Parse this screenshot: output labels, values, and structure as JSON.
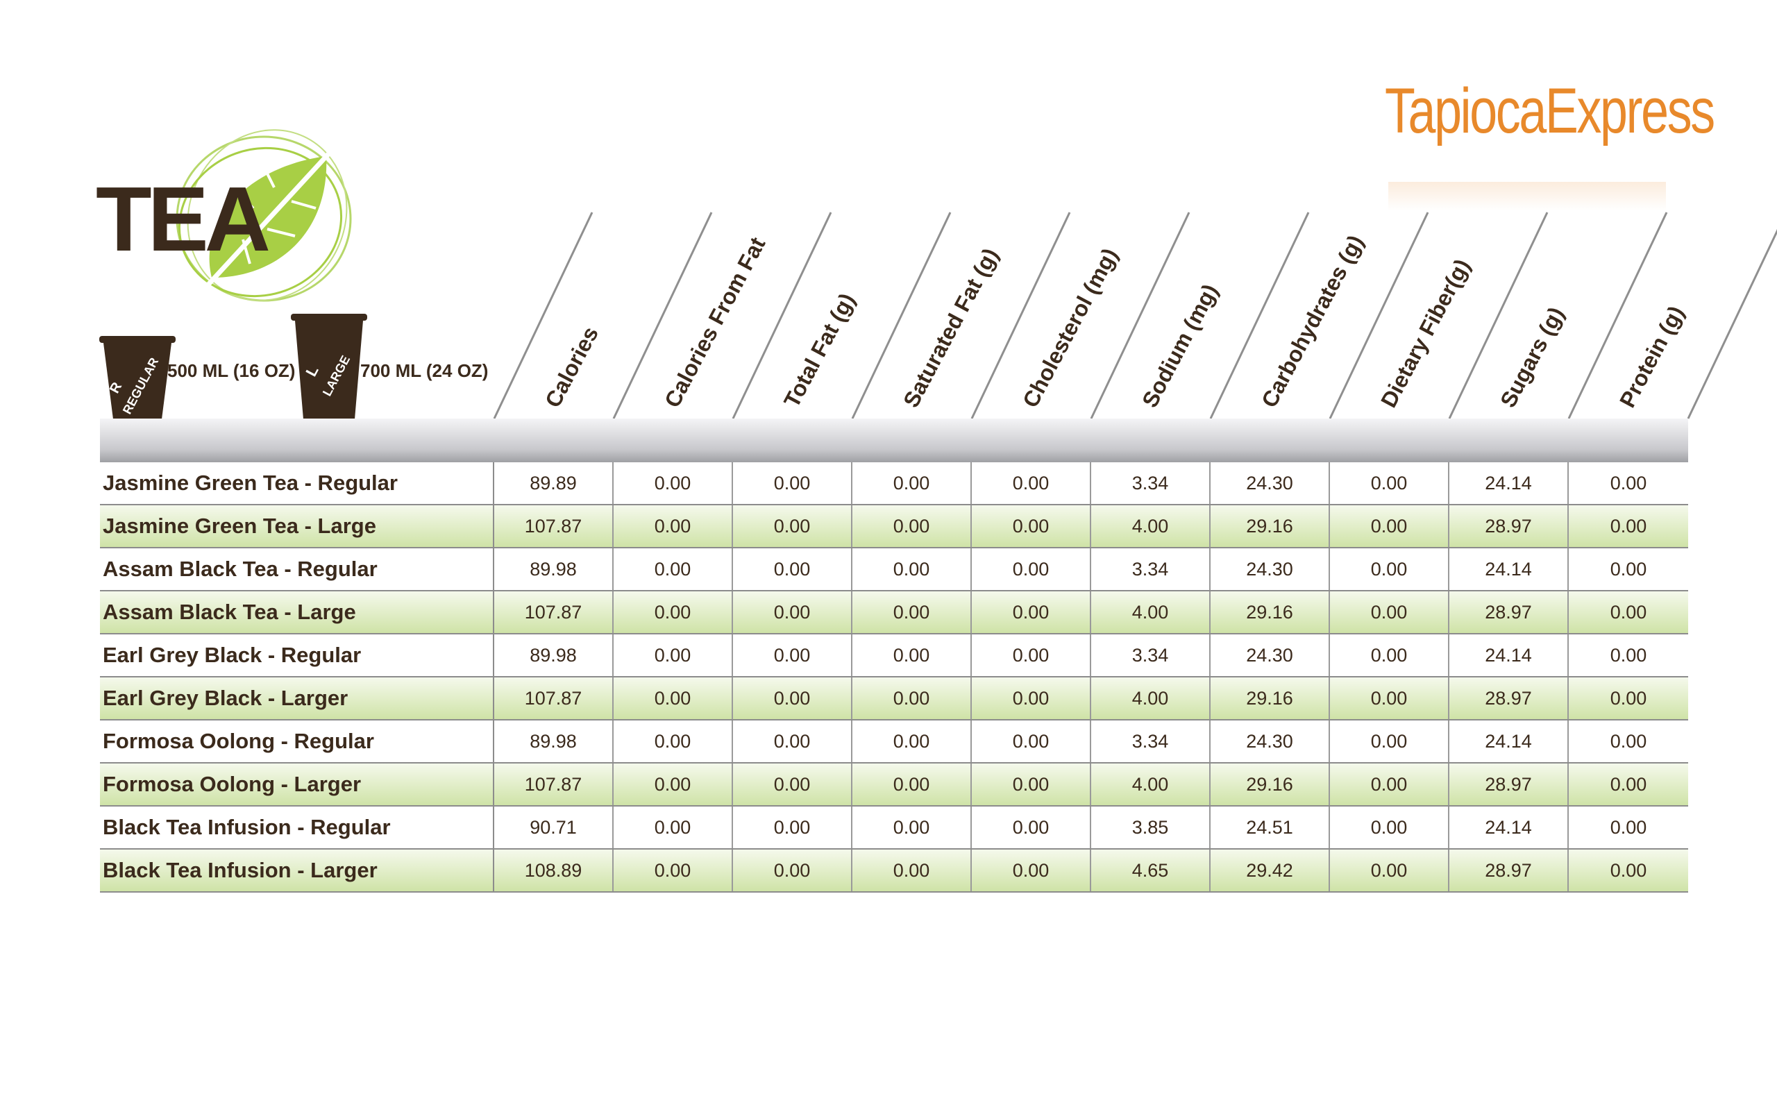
{
  "header": {
    "title": "TEA",
    "brand": "TapiocaExpress"
  },
  "sizes": [
    {
      "letter": "R",
      "name": "REGULAR",
      "volume": "500 ML (16 OZ)"
    },
    {
      "letter": "L",
      "name": "LARGE",
      "volume": "700 ML (24 OZ)"
    }
  ],
  "colors": {
    "brown": "#3b2a1c",
    "green": "#a8cf45",
    "orange": "#e8892b",
    "row_green": "#cfe3a7"
  },
  "columns": [
    "Calories",
    "Calories From Fat",
    "Total Fat (g)",
    "Saturated Fat (g)",
    "Cholesterol (mg)",
    "Sodium (mg)",
    "Carbohydrates (g)",
    "Dietary Fiber(g)",
    "Sugars (g)",
    "Protein (g)"
  ],
  "rows": [
    {
      "name": "Jasmine Green Tea - Regular",
      "values": [
        "89.89",
        "0.00",
        "0.00",
        "0.00",
        "0.00",
        "3.34",
        "24.30",
        "0.00",
        "24.14",
        "0.00"
      ]
    },
    {
      "name": "Jasmine Green Tea - Large",
      "values": [
        "107.87",
        "0.00",
        "0.00",
        "0.00",
        "0.00",
        "4.00",
        "29.16",
        "0.00",
        "28.97",
        "0.00"
      ]
    },
    {
      "name": "Assam Black Tea - Regular",
      "values": [
        "89.98",
        "0.00",
        "0.00",
        "0.00",
        "0.00",
        "3.34",
        "24.30",
        "0.00",
        "24.14",
        "0.00"
      ]
    },
    {
      "name": "Assam Black Tea - Large",
      "values": [
        "107.87",
        "0.00",
        "0.00",
        "0.00",
        "0.00",
        "4.00",
        "29.16",
        "0.00",
        "28.97",
        "0.00"
      ]
    },
    {
      "name": "Earl Grey Black - Regular",
      "values": [
        "89.98",
        "0.00",
        "0.00",
        "0.00",
        "0.00",
        "3.34",
        "24.30",
        "0.00",
        "24.14",
        "0.00"
      ]
    },
    {
      "name": "Earl Grey Black - Larger",
      "values": [
        "107.87",
        "0.00",
        "0.00",
        "0.00",
        "0.00",
        "4.00",
        "29.16",
        "0.00",
        "28.97",
        "0.00"
      ]
    },
    {
      "name": "Formosa Oolong - Regular",
      "values": [
        "89.98",
        "0.00",
        "0.00",
        "0.00",
        "0.00",
        "3.34",
        "24.30",
        "0.00",
        "24.14",
        "0.00"
      ]
    },
    {
      "name": "Formosa Oolong - Larger",
      "values": [
        "107.87",
        "0.00",
        "0.00",
        "0.00",
        "0.00",
        "4.00",
        "29.16",
        "0.00",
        "28.97",
        "0.00"
      ]
    },
    {
      "name": "Black Tea Infusion - Regular",
      "values": [
        "90.71",
        "0.00",
        "0.00",
        "0.00",
        "0.00",
        "3.85",
        "24.51",
        "0.00",
        "24.14",
        "0.00"
      ]
    },
    {
      "name": "Black Tea Infusion - Larger",
      "values": [
        "108.89",
        "0.00",
        "0.00",
        "0.00",
        "0.00",
        "4.65",
        "29.42",
        "0.00",
        "28.97",
        "0.00"
      ]
    }
  ]
}
